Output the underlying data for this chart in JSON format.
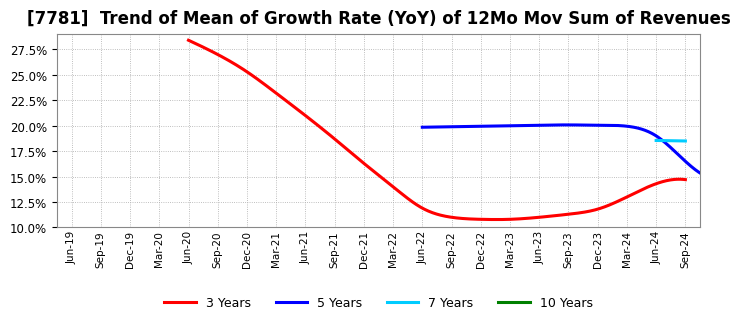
{
  "title": "[7781]  Trend of Mean of Growth Rate (YoY) of 12Mo Mov Sum of Revenues",
  "title_fontsize": 12,
  "background_color": "#ffffff",
  "plot_bg_color": "#ffffff",
  "ylim": [
    0.1,
    0.29
  ],
  "yticks": [
    0.1,
    0.125,
    0.15,
    0.175,
    0.2,
    0.225,
    0.25,
    0.275
  ],
  "grid_color": "#aaaaaa",
  "legend_entries": [
    "3 Years",
    "5 Years",
    "7 Years",
    "10 Years"
  ],
  "legend_colors": [
    "#ff0000",
    "#0000ff",
    "#00ccff",
    "#008000"
  ],
  "series_3yr": {
    "color": "#ff0000",
    "linewidth": 2.2,
    "points": [
      [
        4,
        0.284
      ],
      [
        5,
        0.27
      ],
      [
        6,
        0.253
      ],
      [
        7,
        0.232
      ],
      [
        8,
        0.21
      ],
      [
        9,
        0.187
      ],
      [
        10,
        0.163
      ],
      [
        11,
        0.14
      ],
      [
        12,
        0.119
      ],
      [
        13,
        0.11
      ],
      [
        14,
        0.108
      ],
      [
        15,
        0.108
      ],
      [
        16,
        0.11
      ],
      [
        17,
        0.113
      ],
      [
        18,
        0.118
      ],
      [
        19,
        0.13
      ],
      [
        20,
        0.143
      ],
      [
        21,
        0.147
      ]
    ]
  },
  "series_5yr": {
    "color": "#0000ff",
    "linewidth": 2.2,
    "points": [
      [
        12,
        0.1985
      ],
      [
        13,
        0.199
      ],
      [
        14,
        0.1995
      ],
      [
        15,
        0.2
      ],
      [
        16,
        0.2005
      ],
      [
        17,
        0.2008
      ],
      [
        18,
        0.2005
      ],
      [
        19,
        0.1995
      ],
      [
        20,
        0.19
      ],
      [
        21,
        0.165
      ],
      [
        22,
        0.148
      ]
    ]
  },
  "series_7yr": {
    "color": "#00ccff",
    "linewidth": 2.2,
    "points": [
      [
        20,
        0.1855
      ],
      [
        21,
        0.185
      ]
    ]
  },
  "x_labels": [
    "Jun-19",
    "Sep-19",
    "Dec-19",
    "Mar-20",
    "Jun-20",
    "Sep-20",
    "Dec-20",
    "Mar-21",
    "Jun-21",
    "Sep-21",
    "Dec-21",
    "Mar-22",
    "Jun-22",
    "Sep-22",
    "Dec-22",
    "Mar-23",
    "Jun-23",
    "Sep-23",
    "Dec-23",
    "Mar-24",
    "Jun-24",
    "Sep-24"
  ]
}
